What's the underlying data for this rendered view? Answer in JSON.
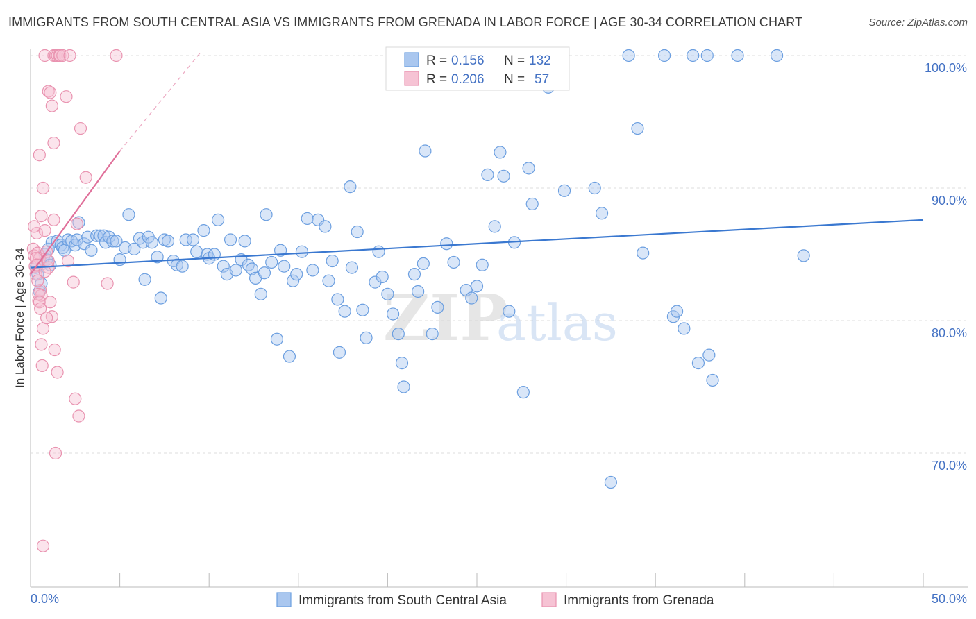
{
  "title": "IMMIGRANTS FROM SOUTH CENTRAL ASIA VS IMMIGRANTS FROM GRENADA IN LABOR FORCE | AGE 30-34 CORRELATION CHART",
  "source": "Source: ZipAtlas.com",
  "watermark": {
    "zip": "ZIP",
    "atlas": "atlas"
  },
  "legend_box": {
    "rows": [
      {
        "r_label": "R =",
        "r_value": "0.156",
        "n_label": "N =",
        "n_value": "132"
      },
      {
        "r_label": "R =",
        "r_value": "0.206",
        "n_label": "N =",
        "n_value": "57"
      }
    ]
  },
  "chart_data": {
    "type": "scatter",
    "ylabel": "In Labor Force | Age 30-34",
    "xlim": [
      0,
      50
    ],
    "ylim": [
      62,
      102
    ],
    "x_tick_labels": [
      {
        "value": 0,
        "label": "0.0%"
      },
      {
        "value": 50,
        "label": "50.0%"
      }
    ],
    "x_minor_ticks": [
      0,
      5,
      10,
      15,
      20,
      25,
      30,
      35,
      40,
      45,
      50
    ],
    "y_tick_labels": [
      {
        "value": 100,
        "label": "100.0%"
      },
      {
        "value": 90,
        "label": "90.0%"
      },
      {
        "value": 80,
        "label": "80.0%"
      },
      {
        "value": 70,
        "label": "70.0%"
      }
    ],
    "grid": true,
    "legend_position": "bottom",
    "series": [
      {
        "name": "Immigrants from South Central Asia",
        "color": "#6c9fe0",
        "fill": "#aac7ef",
        "trend": {
          "x0": 0,
          "y0": 84.0,
          "x1": 50,
          "y1": 87.6,
          "color": "#3a78d0"
        },
        "points": [
          [
            0.3,
            84.0
          ],
          [
            0.4,
            83.5
          ],
          [
            0.5,
            82.2
          ],
          [
            0.6,
            82.8
          ],
          [
            0.7,
            84.3
          ],
          [
            0.8,
            85.0
          ],
          [
            0.9,
            84.6
          ],
          [
            1.0,
            85.4
          ],
          [
            1.1,
            84.2
          ],
          [
            1.2,
            85.9
          ],
          [
            1.5,
            86.0
          ],
          [
            1.7,
            85.7
          ],
          [
            1.8,
            85.5
          ],
          [
            1.9,
            85.3
          ],
          [
            2.1,
            86.1
          ],
          [
            2.3,
            86.0
          ],
          [
            2.5,
            85.7
          ],
          [
            2.6,
            86.1
          ],
          [
            2.7,
            87.4
          ],
          [
            3.0,
            85.8
          ],
          [
            3.2,
            86.3
          ],
          [
            3.4,
            85.3
          ],
          [
            3.7,
            86.4
          ],
          [
            3.9,
            86.4
          ],
          [
            4.1,
            86.4
          ],
          [
            4.2,
            85.9
          ],
          [
            4.4,
            86.3
          ],
          [
            4.6,
            86.0
          ],
          [
            4.8,
            86.0
          ],
          [
            5.0,
            84.6
          ],
          [
            5.3,
            85.5
          ],
          [
            5.5,
            88.0
          ],
          [
            5.8,
            85.4
          ],
          [
            6.1,
            86.2
          ],
          [
            6.3,
            85.9
          ],
          [
            6.4,
            83.1
          ],
          [
            6.6,
            86.3
          ],
          [
            6.8,
            85.9
          ],
          [
            7.1,
            84.8
          ],
          [
            7.3,
            81.7
          ],
          [
            7.5,
            86.1
          ],
          [
            7.7,
            86.0
          ],
          [
            8.0,
            84.5
          ],
          [
            8.2,
            84.2
          ],
          [
            8.5,
            84.1
          ],
          [
            8.7,
            86.1
          ],
          [
            9.1,
            86.1
          ],
          [
            9.3,
            85.2
          ],
          [
            9.7,
            86.8
          ],
          [
            9.9,
            85.0
          ],
          [
            10.0,
            84.7
          ],
          [
            10.3,
            85.0
          ],
          [
            10.5,
            87.6
          ],
          [
            10.8,
            84.1
          ],
          [
            11.0,
            83.5
          ],
          [
            11.2,
            86.1
          ],
          [
            11.5,
            83.8
          ],
          [
            11.8,
            84.6
          ],
          [
            12.0,
            86.0
          ],
          [
            12.2,
            84.2
          ],
          [
            12.4,
            83.9
          ],
          [
            12.6,
            83.2
          ],
          [
            12.9,
            82.0
          ],
          [
            13.1,
            83.6
          ],
          [
            13.2,
            88.0
          ],
          [
            13.5,
            84.4
          ],
          [
            13.8,
            78.6
          ],
          [
            14.0,
            85.3
          ],
          [
            14.2,
            84.1
          ],
          [
            14.5,
            77.3
          ],
          [
            14.7,
            83.0
          ],
          [
            14.9,
            83.5
          ],
          [
            15.2,
            85.2
          ],
          [
            15.5,
            87.7
          ],
          [
            15.8,
            83.8
          ],
          [
            16.1,
            87.6
          ],
          [
            16.5,
            87.1
          ],
          [
            16.7,
            83.0
          ],
          [
            16.9,
            84.5
          ],
          [
            17.2,
            81.6
          ],
          [
            17.3,
            77.6
          ],
          [
            17.6,
            80.7
          ],
          [
            17.9,
            90.1
          ],
          [
            18.0,
            84.0
          ],
          [
            18.3,
            86.7
          ],
          [
            18.6,
            80.8
          ],
          [
            18.8,
            78.7
          ],
          [
            19.3,
            82.9
          ],
          [
            19.5,
            85.2
          ],
          [
            19.7,
            83.3
          ],
          [
            20.0,
            82.0
          ],
          [
            20.3,
            80.5
          ],
          [
            20.6,
            79.0
          ],
          [
            20.8,
            76.8
          ],
          [
            20.9,
            75.0
          ],
          [
            21.5,
            83.5
          ],
          [
            21.7,
            82.2
          ],
          [
            22.0,
            84.3
          ],
          [
            22.1,
            92.8
          ],
          [
            22.5,
            79.0
          ],
          [
            22.8,
            81.0
          ],
          [
            23.3,
            85.8
          ],
          [
            23.7,
            84.4
          ],
          [
            24.4,
            82.3
          ],
          [
            24.7,
            81.7
          ],
          [
            25.0,
            82.6
          ],
          [
            25.3,
            84.2
          ],
          [
            25.6,
            91.0
          ],
          [
            26.0,
            87.1
          ],
          [
            26.3,
            92.7
          ],
          [
            26.5,
            90.9
          ],
          [
            26.8,
            80.7
          ],
          [
            27.1,
            85.9
          ],
          [
            27.6,
            74.6
          ],
          [
            27.9,
            91.5
          ],
          [
            28.1,
            88.8
          ],
          [
            29.9,
            89.8
          ],
          [
            31.6,
            90.0
          ],
          [
            32.0,
            88.1
          ],
          [
            32.5,
            67.8
          ],
          [
            33.5,
            100.0
          ],
          [
            34.0,
            94.5
          ],
          [
            34.3,
            85.1
          ],
          [
            35.5,
            100.0
          ],
          [
            36.0,
            80.3
          ],
          [
            36.2,
            80.7
          ],
          [
            36.6,
            79.4
          ],
          [
            37.1,
            100.0
          ],
          [
            37.4,
            76.8
          ],
          [
            37.9,
            100.0
          ],
          [
            38.0,
            77.4
          ],
          [
            38.2,
            75.5
          ],
          [
            39.6,
            100.0
          ],
          [
            41.8,
            100.0
          ],
          [
            43.3,
            84.9
          ],
          [
            29.0,
            97.6
          ]
        ]
      },
      {
        "name": "Immigrants from Grenada",
        "color": "#e993b0",
        "fill": "#f6c3d4",
        "trend": {
          "x0": 0,
          "y0": 83.5,
          "x1": 5,
          "y1": 92.8,
          "color": "#e0709a"
        },
        "trend_extension": {
          "x0": 5,
          "y0": 92.8,
          "x1": 9.5,
          "y1": 100.2
        },
        "points": [
          [
            0.15,
            85.4
          ],
          [
            0.2,
            84.9
          ],
          [
            0.25,
            84.1
          ],
          [
            0.3,
            83.5
          ],
          [
            0.35,
            86.6
          ],
          [
            0.4,
            85.1
          ],
          [
            0.45,
            81.5
          ],
          [
            0.5,
            84.7
          ],
          [
            0.55,
            82.3
          ],
          [
            0.6,
            81.9
          ],
          [
            0.2,
            87.1
          ],
          [
            0.3,
            84.7
          ],
          [
            0.35,
            84.2
          ],
          [
            0.4,
            83.0
          ],
          [
            0.45,
            82.0
          ],
          [
            0.5,
            81.4
          ],
          [
            0.55,
            80.9
          ],
          [
            0.6,
            78.2
          ],
          [
            0.65,
            76.6
          ],
          [
            0.7,
            63.0
          ],
          [
            0.5,
            92.5
          ],
          [
            0.6,
            87.9
          ],
          [
            0.7,
            90.0
          ],
          [
            0.8,
            86.8
          ],
          [
            0.9,
            85.2
          ],
          [
            1.0,
            84.0
          ],
          [
            1.1,
            81.4
          ],
          [
            1.2,
            80.3
          ],
          [
            1.3,
            87.6
          ],
          [
            1.4,
            70.0
          ],
          [
            0.7,
            79.4
          ],
          [
            0.8,
            83.7
          ],
          [
            0.9,
            80.2
          ],
          [
            1.0,
            84.5
          ],
          [
            1.0,
            97.3
          ],
          [
            1.1,
            97.2
          ],
          [
            1.2,
            96.2
          ],
          [
            1.3,
            93.4
          ],
          [
            1.35,
            77.8
          ],
          [
            1.5,
            76.1
          ],
          [
            0.8,
            100.0
          ],
          [
            1.3,
            100.0
          ],
          [
            1.4,
            100.0
          ],
          [
            1.5,
            100.0
          ],
          [
            1.6,
            100.0
          ],
          [
            1.65,
            100.0
          ],
          [
            1.8,
            100.0
          ],
          [
            2.0,
            96.9
          ],
          [
            2.1,
            84.5
          ],
          [
            2.2,
            100.0
          ],
          [
            2.4,
            82.9
          ],
          [
            2.5,
            74.1
          ],
          [
            2.6,
            87.3
          ],
          [
            2.7,
            72.8
          ],
          [
            2.8,
            94.5
          ],
          [
            3.1,
            90.8
          ],
          [
            4.3,
            82.8
          ],
          [
            4.8,
            100.0
          ]
        ]
      }
    ]
  }
}
